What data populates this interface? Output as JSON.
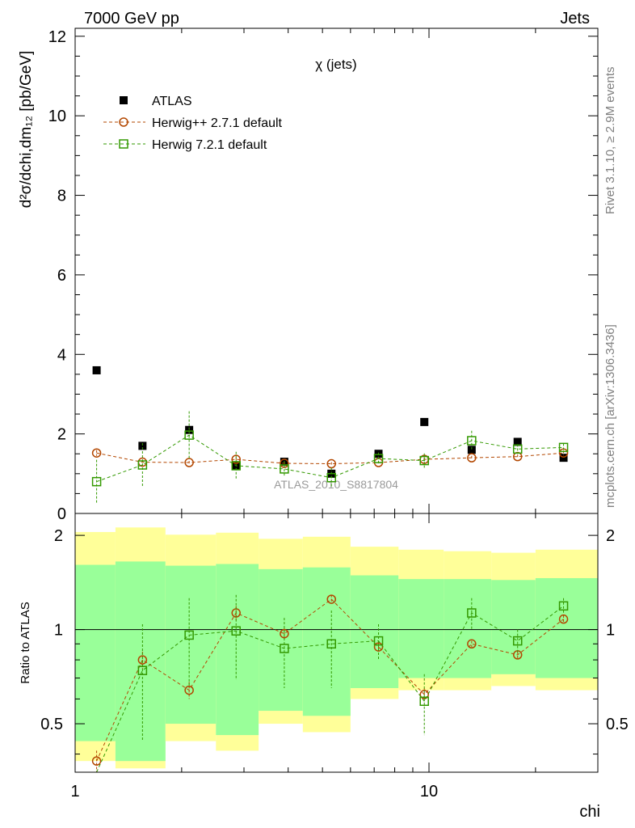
{
  "header": {
    "left": "7000 GeV pp",
    "right": "Jets"
  },
  "side_labels": {
    "rivet": "Rivet 3.1.10, ≥ 2.9M events",
    "mcplots": "mcplots.cern.ch [arXiv:1306.3436]"
  },
  "watermark": "ATLAS_2010_S8817804",
  "chart_data": {
    "type": "scatter",
    "title": "χ (jets)",
    "xlabel": "chi",
    "xscale": "log",
    "xlim": [
      1,
      30
    ],
    "x_ticks": [
      {
        "value": 1,
        "label": "1"
      },
      {
        "value": 10,
        "label": "10"
      }
    ],
    "main": {
      "ylabel": "d²σ/dchi,dm₁₂ [pb/GeV]",
      "ylim": [
        0,
        12.2
      ],
      "y_ticks": [
        {
          "value": 0,
          "label": "0"
        },
        {
          "value": 2,
          "label": "2"
        },
        {
          "value": 4,
          "label": "4"
        },
        {
          "value": 6,
          "label": "6"
        },
        {
          "value": 8,
          "label": "8"
        },
        {
          "value": 10,
          "label": "10"
        },
        {
          "value": 12,
          "label": "12"
        }
      ]
    },
    "ratio": {
      "ylabel": "Ratio to ATLAS",
      "ylim": [
        0.35,
        2.35
      ],
      "y_ticks": [
        {
          "value": 0.5,
          "label": "0.5"
        },
        {
          "value": 1,
          "label": "1"
        },
        {
          "value": 2,
          "label": "2"
        }
      ],
      "bands": [
        {
          "xlow": 1.0,
          "xhigh": 1.3,
          "green": [
            0.44,
            1.61
          ],
          "yellow": [
            0.38,
            2.05
          ]
        },
        {
          "xlow": 1.3,
          "xhigh": 1.8,
          "green": [
            0.38,
            1.65
          ],
          "yellow": [
            0.36,
            2.12
          ]
        },
        {
          "xlow": 1.8,
          "xhigh": 2.5,
          "green": [
            0.5,
            1.6
          ],
          "yellow": [
            0.44,
            2.01
          ]
        },
        {
          "xlow": 2.5,
          "xhigh": 3.3,
          "green": [
            0.46,
            1.62
          ],
          "yellow": [
            0.41,
            2.04
          ]
        },
        {
          "xlow": 3.3,
          "xhigh": 4.4,
          "green": [
            0.55,
            1.56
          ],
          "yellow": [
            0.5,
            1.95
          ]
        },
        {
          "xlow": 4.4,
          "xhigh": 6.0,
          "green": [
            0.53,
            1.58
          ],
          "yellow": [
            0.47,
            1.98
          ]
        },
        {
          "xlow": 6.0,
          "xhigh": 8.2,
          "green": [
            0.65,
            1.49
          ],
          "yellow": [
            0.6,
            1.84
          ]
        },
        {
          "xlow": 8.2,
          "xhigh": 11.0,
          "green": [
            0.7,
            1.45
          ],
          "yellow": [
            0.64,
            1.8
          ]
        },
        {
          "xlow": 11.0,
          "xhigh": 15.0,
          "green": [
            0.7,
            1.45
          ],
          "yellow": [
            0.64,
            1.78
          ]
        },
        {
          "xlow": 15.0,
          "xhigh": 20.0,
          "green": [
            0.72,
            1.44
          ],
          "yellow": [
            0.66,
            1.76
          ]
        },
        {
          "xlow": 20.0,
          "xhigh": 30.0,
          "green": [
            0.7,
            1.46
          ],
          "yellow": [
            0.64,
            1.8
          ]
        }
      ]
    },
    "series": [
      {
        "name": "ATLAS",
        "color": "#000000",
        "marker": "filled-square",
        "x": [
          1.15,
          1.55,
          2.1,
          2.85,
          3.9,
          5.3,
          7.2,
          9.7,
          13.2,
          17.8,
          24.0
        ],
        "y": [
          3.6,
          1.7,
          2.1,
          1.2,
          1.3,
          1.0,
          1.5,
          2.3,
          1.6,
          1.8,
          1.4
        ],
        "yerr": [
          0.05,
          0.05,
          0.05,
          0.05,
          0.05,
          0.05,
          0.05,
          0.05,
          0.05,
          0.05,
          0.05
        ],
        "ratio": [
          1,
          1,
          1,
          1,
          1,
          1,
          1,
          1,
          1,
          1,
          1
        ]
      },
      {
        "name": "Herwig++ 2.7.1 default",
        "color": "#b34700",
        "marker": "open-circle",
        "x": [
          1.15,
          1.55,
          2.1,
          2.85,
          3.9,
          5.3,
          7.2,
          9.7,
          13.2,
          17.8,
          24.0
        ],
        "y": [
          1.52,
          1.29,
          1.28,
          1.36,
          1.26,
          1.25,
          1.28,
          1.36,
          1.4,
          1.43,
          1.52
        ],
        "yerr": [
          0.07,
          0.05,
          0.04,
          0.05,
          0.05,
          0.04,
          0.04,
          0.05,
          0.05,
          0.05,
          0.06
        ],
        "ratio": [
          0.38,
          0.8,
          0.64,
          1.13,
          0.97,
          1.25,
          0.88,
          0.62,
          0.9,
          0.83,
          1.08
        ],
        "ratio_err": [
          0.03,
          0.05,
          0.04,
          0.06,
          0.04,
          0.04,
          0.03,
          0.03,
          0.02,
          0.02,
          0.03
        ]
      },
      {
        "name": "Herwig 7.2.1 default",
        "color": "#339900",
        "marker": "open-square",
        "x": [
          1.15,
          1.55,
          2.1,
          2.85,
          3.9,
          5.3,
          7.2,
          9.7,
          13.2,
          17.8,
          24.0
        ],
        "y": [
          0.8,
          1.22,
          1.97,
          1.2,
          1.12,
          0.9,
          1.38,
          1.33,
          1.83,
          1.62,
          1.66
        ],
        "yerr": [
          0.55,
          0.55,
          0.6,
          0.35,
          0.2,
          0.25,
          0.15,
          0.18,
          0.25,
          0.12,
          0.1
        ],
        "ratio": [
          0.2,
          0.74,
          0.96,
          0.99,
          0.87,
          0.9,
          0.92,
          0.59,
          1.13,
          0.92,
          1.19
        ],
        "ratio_err": [
          0.15,
          0.3,
          0.3,
          0.3,
          0.22,
          0.25,
          0.12,
          0.13,
          0.13,
          0.08,
          0.07
        ]
      }
    ]
  }
}
